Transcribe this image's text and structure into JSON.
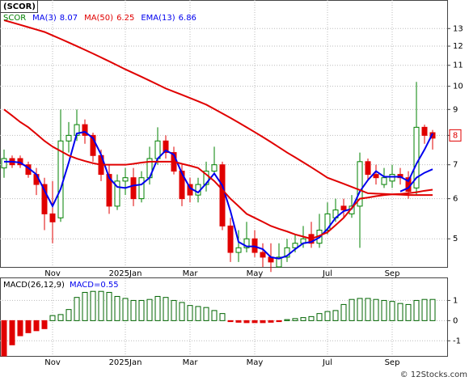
{
  "chart_data": [
    {
      "type": "candlestick",
      "title": "(SCOR)",
      "ticker": "SCOR",
      "log_scale": true,
      "grid": true,
      "up_color": "#008000",
      "down_color": "#e00000",
      "categories": [
        null,
        null,
        null,
        null,
        null,
        null,
        "Nov",
        null,
        null,
        null,
        null,
        null,
        null,
        null,
        null,
        "2025Jan",
        null,
        null,
        null,
        null,
        null,
        null,
        null,
        "Mar",
        null,
        null,
        null,
        null,
        null,
        null,
        null,
        "May",
        null,
        null,
        null,
        null,
        null,
        null,
        null,
        null,
        "Jul",
        null,
        null,
        null,
        null,
        null,
        null,
        null,
        "Sep",
        null,
        null,
        null,
        null,
        null
      ],
      "open": [
        6.9,
        7.2,
        7.2,
        7.0,
        6.7,
        6.4,
        5.6,
        5.5,
        7.8,
        8.0,
        8.4,
        8.0,
        7.3,
        6.7,
        5.8,
        6.5,
        6.6,
        6.0,
        6.6,
        7.2,
        7.8,
        7.4,
        6.8,
        6.4,
        6.1,
        6.4,
        6.8,
        7.0,
        5.3,
        4.7,
        4.8,
        5.0,
        4.7,
        4.6,
        4.4,
        4.6,
        4.8,
        4.9,
        5.1,
        4.9,
        5.2,
        5.5,
        5.8,
        5.6,
        5.8,
        7.1,
        6.7,
        6.4,
        6.5,
        6.7,
        6.6,
        6.3,
        8.3,
        8.1
      ],
      "high": [
        7.5,
        7.3,
        7.3,
        7.1,
        6.9,
        6.6,
        6.5,
        9.0,
        8.5,
        9.0,
        8.6,
        8.1,
        7.5,
        7.0,
        6.7,
        6.9,
        6.9,
        6.8,
        7.6,
        8.3,
        8.0,
        7.6,
        7.0,
        6.6,
        6.6,
        7.1,
        7.6,
        7.1,
        5.5,
        5.2,
        5.4,
        5.2,
        4.9,
        4.9,
        4.9,
        5.0,
        5.1,
        5.3,
        5.4,
        5.6,
        5.9,
        6.0,
        6.0,
        6.1,
        7.4,
        7.2,
        7.0,
        6.9,
        7.0,
        6.9,
        6.8,
        10.2,
        8.4,
        8.2
      ],
      "low": [
        6.6,
        6.9,
        6.9,
        6.6,
        6.1,
        5.2,
        4.9,
        5.4,
        7.4,
        7.8,
        7.7,
        7.1,
        6.5,
        5.6,
        5.7,
        6.1,
        5.8,
        5.9,
        6.4,
        7.0,
        7.2,
        6.7,
        5.8,
        5.9,
        5.9,
        6.2,
        6.7,
        5.2,
        4.5,
        4.5,
        4.7,
        4.6,
        4.4,
        4.3,
        4.4,
        4.5,
        4.7,
        4.8,
        4.8,
        4.8,
        5.1,
        5.4,
        5.5,
        5.5,
        4.8,
        6.5,
        6.4,
        6.3,
        6.3,
        6.4,
        6.0,
        6.1,
        7.7,
        7.5
      ],
      "close": [
        7.2,
        7.0,
        7.0,
        6.7,
        6.4,
        5.6,
        5.4,
        7.8,
        8.0,
        8.4,
        8.0,
        7.3,
        6.7,
        5.8,
        6.5,
        6.6,
        6.0,
        6.6,
        7.2,
        7.8,
        7.4,
        6.8,
        6.0,
        6.1,
        6.4,
        6.8,
        7.0,
        5.3,
        4.7,
        4.8,
        5.0,
        4.7,
        4.6,
        4.5,
        4.6,
        4.8,
        4.9,
        5.0,
        4.9,
        5.2,
        5.6,
        5.7,
        5.7,
        5.8,
        7.1,
        6.7,
        6.6,
        6.6,
        6.7,
        6.6,
        6.2,
        8.3,
        8.0,
        7.9
      ],
      "series": [
        {
          "name": "MA(3)",
          "color": "#0000ee",
          "last": 8.07,
          "values": [
            7.1,
            7.1,
            7.07,
            6.9,
            6.7,
            6.23,
            5.8,
            6.27,
            7.07,
            8.07,
            8.13,
            7.9,
            7.33,
            6.6,
            6.33,
            6.3,
            6.37,
            6.4,
            6.6,
            7.2,
            7.47,
            7.33,
            6.73,
            6.3,
            6.17,
            6.43,
            6.73,
            6.37,
            5.67,
            4.93,
            4.83,
            4.83,
            4.77,
            4.6,
            4.57,
            4.63,
            4.77,
            4.9,
            4.93,
            5.03,
            5.23,
            5.5,
            5.67,
            5.73,
            6.2,
            6.53,
            6.8,
            6.63,
            6.63,
            6.63,
            6.5,
            7.03,
            7.5,
            8.07
          ]
        },
        {
          "name": "MA(50)",
          "color": "#e00000",
          "last": 6.25,
          "values": [
            9.0,
            8.75,
            8.5,
            8.3,
            8.05,
            7.8,
            7.6,
            7.45,
            7.3,
            7.2,
            7.12,
            7.05,
            7.0,
            7.0,
            7.0,
            7.0,
            7.03,
            7.07,
            7.1,
            7.1,
            7.1,
            7.1,
            7.03,
            6.97,
            6.9,
            6.7,
            6.5,
            6.25,
            6.0,
            5.8,
            5.6,
            5.5,
            5.4,
            5.3,
            5.23,
            5.17,
            5.1,
            5.05,
            5.0,
            5.07,
            5.15,
            5.32,
            5.5,
            5.75,
            6.0,
            6.03,
            6.07,
            6.1,
            6.12,
            6.13,
            6.15,
            6.18,
            6.22,
            6.25
          ]
        },
        {
          "color": "#e00000",
          "values": [
            13.5,
            13.36,
            13.22,
            13.08,
            12.94,
            12.8,
            12.6,
            12.4,
            12.2,
            12.0,
            11.8,
            11.6,
            11.4,
            11.2,
            11.0,
            10.8,
            10.62,
            10.44,
            10.26,
            10.08,
            9.9,
            9.76,
            9.62,
            9.48,
            9.34,
            9.2,
            9.02,
            8.84,
            8.66,
            8.48,
            8.3,
            8.12,
            7.94,
            7.76,
            7.58,
            7.4,
            7.24,
            7.08,
            6.92,
            6.76,
            6.6,
            6.51,
            6.42,
            6.33,
            6.24,
            6.15,
            6.14,
            6.13,
            6.12,
            6.11,
            6.1,
            6.1,
            6.1,
            6.1
          ]
        },
        {
          "name": "EMA(13)",
          "color": "#0000ee",
          "last": 6.86,
          "values": [
            null,
            null,
            null,
            null,
            null,
            null,
            null,
            null,
            null,
            null,
            null,
            null,
            null,
            null,
            null,
            null,
            null,
            null,
            null,
            null,
            null,
            null,
            null,
            null,
            null,
            null,
            null,
            null,
            null,
            null,
            null,
            null,
            null,
            null,
            null,
            null,
            null,
            null,
            null,
            null,
            null,
            null,
            null,
            null,
            null,
            null,
            null,
            null,
            null,
            6.2,
            6.3,
            6.6,
            6.75,
            6.86
          ]
        }
      ],
      "price_tag": 8,
      "ylim": [
        4.4,
        14.8
      ],
      "yticks": [
        5,
        6,
        7,
        8,
        9,
        10,
        11,
        12,
        13
      ]
    },
    {
      "type": "bar",
      "title": "MACD(26,12,9)",
      "subtitle": "MACD=0.55",
      "grid": true,
      "up_color": "#006400",
      "down_color": "#e00000",
      "categories": [
        null,
        null,
        null,
        null,
        null,
        null,
        "Nov",
        null,
        null,
        null,
        null,
        null,
        null,
        null,
        null,
        "2025Jan",
        null,
        null,
        null,
        null,
        null,
        null,
        null,
        "Mar",
        null,
        null,
        null,
        null,
        null,
        null,
        null,
        "May",
        null,
        null,
        null,
        null,
        null,
        null,
        null,
        null,
        "Jul",
        null,
        null,
        null,
        null,
        null,
        null,
        null,
        "Sep",
        null,
        null,
        null,
        null,
        null
      ],
      "values": [
        -1.75,
        -1.2,
        -0.75,
        -0.6,
        -0.5,
        -0.4,
        0.25,
        0.3,
        0.55,
        1.15,
        1.4,
        1.45,
        1.45,
        1.4,
        1.2,
        1.1,
        1.0,
        1.0,
        1.05,
        1.2,
        1.15,
        1.0,
        0.9,
        0.75,
        0.7,
        0.65,
        0.5,
        0.35,
        -0.05,
        -0.08,
        -0.1,
        -0.1,
        -0.1,
        -0.08,
        -0.05,
        0.05,
        0.1,
        0.15,
        0.2,
        0.35,
        0.45,
        0.5,
        0.8,
        1.05,
        1.1,
        1.1,
        1.05,
        1.0,
        0.95,
        0.85,
        0.8,
        1.0,
        1.05,
        1.05
      ],
      "ylim": [
        -1.75,
        2.1
      ],
      "yticks": [
        -1,
        0,
        1
      ]
    }
  ],
  "watermark": "© 12Stocks.com"
}
